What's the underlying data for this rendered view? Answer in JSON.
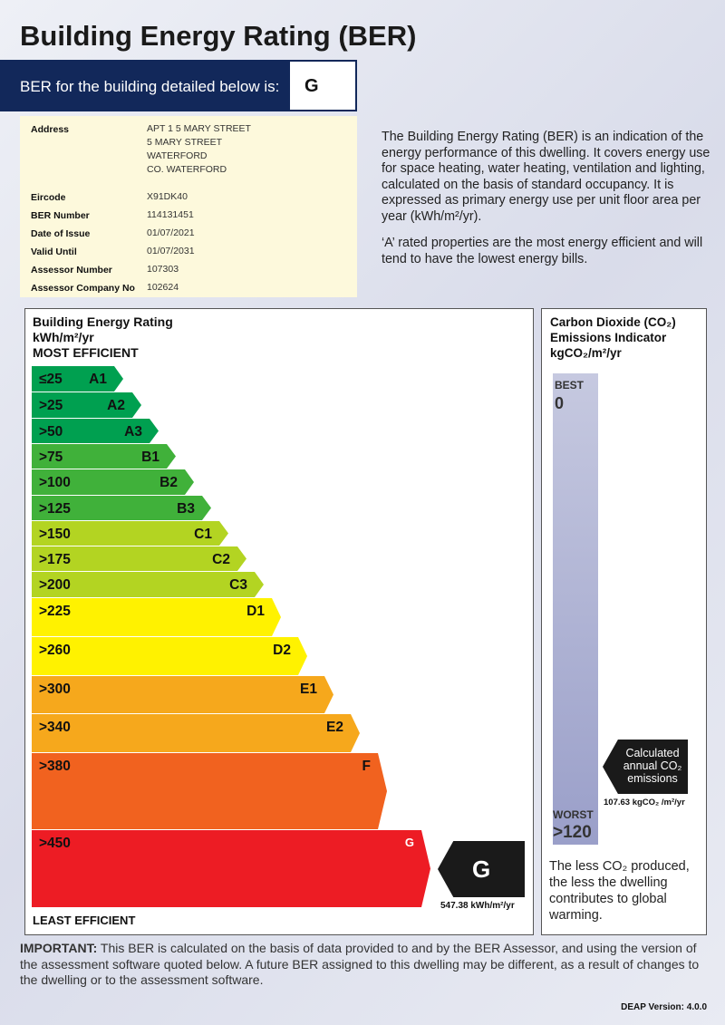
{
  "title": "Building Energy Rating (BER)",
  "ber_banner": {
    "label": "BER for the building detailed below is:",
    "grade": "G"
  },
  "details": {
    "address_label": "Address",
    "address_lines": [
      "APT 1 5 MARY STREET",
      "5 MARY STREET",
      "WATERFORD",
      "CO. WATERFORD"
    ],
    "fields": [
      {
        "label": "Eircode",
        "value": "X91DK40"
      },
      {
        "label": "BER Number",
        "value": "114131451"
      },
      {
        "label": "Date of Issue",
        "value": "01/07/2021"
      },
      {
        "label": "Valid Until",
        "value": "01/07/2031"
      },
      {
        "label": "Assessor Number",
        "value": "107303"
      },
      {
        "label": "Assessor Company No",
        "value": "102624"
      }
    ]
  },
  "description": {
    "p1": "The Building Energy Rating (BER) is an indication of the energy performance of this dwelling.  It covers energy use for space heating, water heating, ventilation and lighting, calculated on the basis of standard occupancy. It is expressed as primary energy use per unit floor area per year (kWh/m²/yr).",
    "p2": "‘A’ rated properties are the most energy efficient and will tend to have the lowest energy bills."
  },
  "rating_panel": {
    "heading1": "Building Energy Rating",
    "heading2": "kWh/m²/yr",
    "heading3": "MOST EFFICIENT",
    "footer": "LEAST EFFICIENT",
    "bands": [
      {
        "range": "≤25",
        "class": "A1",
        "color": "#00a050"
      },
      {
        "range": ">25",
        "class": "A2",
        "color": "#00a050"
      },
      {
        "range": ">50",
        "class": "A3",
        "color": "#00a050"
      },
      {
        "range": ">75",
        "class": "B1",
        "color": "#40b13a"
      },
      {
        "range": ">100",
        "class": "B2",
        "color": "#40b13a"
      },
      {
        "range": ">125",
        "class": "B3",
        "color": "#40b13a"
      },
      {
        "range": ">150",
        "class": "C1",
        "color": "#b3d422"
      },
      {
        "range": ">175",
        "class": "C2",
        "color": "#b3d422"
      },
      {
        "range": ">200",
        "class": "C3",
        "color": "#b3d422"
      },
      {
        "range": ">225",
        "class": "D1",
        "color": "#fff200"
      },
      {
        "range": ">260",
        "class": "D2",
        "color": "#fff200"
      },
      {
        "range": ">300",
        "class": "E1",
        "color": "#f6a81c"
      },
      {
        "range": ">340",
        "class": "E2",
        "color": "#f6a81c"
      },
      {
        "range": ">380",
        "class": "F",
        "color": "#f1621f"
      },
      {
        "range": ">450",
        "class": "G",
        "color": "#ed1c24"
      }
    ],
    "result_grade": "G",
    "result_value": "547.38 kWh/m²/yr"
  },
  "co2_panel": {
    "heading1": "Carbon Dioxide (CO₂)",
    "heading2": "Emissions Indicator",
    "heading3": "kgCO₂/m²/yr",
    "best_label": "BEST",
    "best_value": "0",
    "worst_label": "WORST",
    "worst_value": ">120",
    "arrow_text": "Calculated annual CO₂ emissions",
    "value": "107.63 kgCO₂ /m²/yr",
    "note": "The less CO₂ produced, the less the dwelling contributes to global warming."
  },
  "important": {
    "label": "IMPORTANT:",
    "text": " This BER is calculated on the basis of data provided to and by the BER Assessor, and using the version of the assessment software quoted below.  A future BER assigned to this dwelling may be different, as a result of changes to the dwelling or to the assessment software."
  },
  "deap_version": "DEAP Version: 4.0.0"
}
